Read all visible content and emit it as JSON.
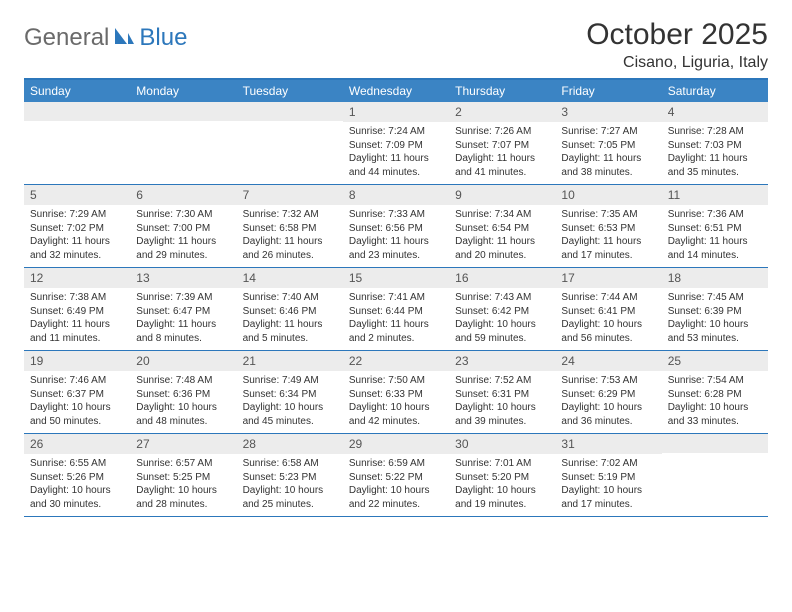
{
  "brand": {
    "part1": "General",
    "part2": "Blue"
  },
  "title": "October 2025",
  "location": "Cisano, Liguria, Italy",
  "weekdays": [
    "Sunday",
    "Monday",
    "Tuesday",
    "Wednesday",
    "Thursday",
    "Friday",
    "Saturday"
  ],
  "colors": {
    "header_bar": "#3b84c4",
    "rule": "#2c77bb",
    "daynum_bg": "#ececec",
    "text": "#333333"
  },
  "weeks": [
    [
      {
        "num": "",
        "sunrise": "",
        "sunset": "",
        "daylight": ""
      },
      {
        "num": "",
        "sunrise": "",
        "sunset": "",
        "daylight": ""
      },
      {
        "num": "",
        "sunrise": "",
        "sunset": "",
        "daylight": ""
      },
      {
        "num": "1",
        "sunrise": "Sunrise: 7:24 AM",
        "sunset": "Sunset: 7:09 PM",
        "daylight": "Daylight: 11 hours and 44 minutes."
      },
      {
        "num": "2",
        "sunrise": "Sunrise: 7:26 AM",
        "sunset": "Sunset: 7:07 PM",
        "daylight": "Daylight: 11 hours and 41 minutes."
      },
      {
        "num": "3",
        "sunrise": "Sunrise: 7:27 AM",
        "sunset": "Sunset: 7:05 PM",
        "daylight": "Daylight: 11 hours and 38 minutes."
      },
      {
        "num": "4",
        "sunrise": "Sunrise: 7:28 AM",
        "sunset": "Sunset: 7:03 PM",
        "daylight": "Daylight: 11 hours and 35 minutes."
      }
    ],
    [
      {
        "num": "5",
        "sunrise": "Sunrise: 7:29 AM",
        "sunset": "Sunset: 7:02 PM",
        "daylight": "Daylight: 11 hours and 32 minutes."
      },
      {
        "num": "6",
        "sunrise": "Sunrise: 7:30 AM",
        "sunset": "Sunset: 7:00 PM",
        "daylight": "Daylight: 11 hours and 29 minutes."
      },
      {
        "num": "7",
        "sunrise": "Sunrise: 7:32 AM",
        "sunset": "Sunset: 6:58 PM",
        "daylight": "Daylight: 11 hours and 26 minutes."
      },
      {
        "num": "8",
        "sunrise": "Sunrise: 7:33 AM",
        "sunset": "Sunset: 6:56 PM",
        "daylight": "Daylight: 11 hours and 23 minutes."
      },
      {
        "num": "9",
        "sunrise": "Sunrise: 7:34 AM",
        "sunset": "Sunset: 6:54 PM",
        "daylight": "Daylight: 11 hours and 20 minutes."
      },
      {
        "num": "10",
        "sunrise": "Sunrise: 7:35 AM",
        "sunset": "Sunset: 6:53 PM",
        "daylight": "Daylight: 11 hours and 17 minutes."
      },
      {
        "num": "11",
        "sunrise": "Sunrise: 7:36 AM",
        "sunset": "Sunset: 6:51 PM",
        "daylight": "Daylight: 11 hours and 14 minutes."
      }
    ],
    [
      {
        "num": "12",
        "sunrise": "Sunrise: 7:38 AM",
        "sunset": "Sunset: 6:49 PM",
        "daylight": "Daylight: 11 hours and 11 minutes."
      },
      {
        "num": "13",
        "sunrise": "Sunrise: 7:39 AM",
        "sunset": "Sunset: 6:47 PM",
        "daylight": "Daylight: 11 hours and 8 minutes."
      },
      {
        "num": "14",
        "sunrise": "Sunrise: 7:40 AM",
        "sunset": "Sunset: 6:46 PM",
        "daylight": "Daylight: 11 hours and 5 minutes."
      },
      {
        "num": "15",
        "sunrise": "Sunrise: 7:41 AM",
        "sunset": "Sunset: 6:44 PM",
        "daylight": "Daylight: 11 hours and 2 minutes."
      },
      {
        "num": "16",
        "sunrise": "Sunrise: 7:43 AM",
        "sunset": "Sunset: 6:42 PM",
        "daylight": "Daylight: 10 hours and 59 minutes."
      },
      {
        "num": "17",
        "sunrise": "Sunrise: 7:44 AM",
        "sunset": "Sunset: 6:41 PM",
        "daylight": "Daylight: 10 hours and 56 minutes."
      },
      {
        "num": "18",
        "sunrise": "Sunrise: 7:45 AM",
        "sunset": "Sunset: 6:39 PM",
        "daylight": "Daylight: 10 hours and 53 minutes."
      }
    ],
    [
      {
        "num": "19",
        "sunrise": "Sunrise: 7:46 AM",
        "sunset": "Sunset: 6:37 PM",
        "daylight": "Daylight: 10 hours and 50 minutes."
      },
      {
        "num": "20",
        "sunrise": "Sunrise: 7:48 AM",
        "sunset": "Sunset: 6:36 PM",
        "daylight": "Daylight: 10 hours and 48 minutes."
      },
      {
        "num": "21",
        "sunrise": "Sunrise: 7:49 AM",
        "sunset": "Sunset: 6:34 PM",
        "daylight": "Daylight: 10 hours and 45 minutes."
      },
      {
        "num": "22",
        "sunrise": "Sunrise: 7:50 AM",
        "sunset": "Sunset: 6:33 PM",
        "daylight": "Daylight: 10 hours and 42 minutes."
      },
      {
        "num": "23",
        "sunrise": "Sunrise: 7:52 AM",
        "sunset": "Sunset: 6:31 PM",
        "daylight": "Daylight: 10 hours and 39 minutes."
      },
      {
        "num": "24",
        "sunrise": "Sunrise: 7:53 AM",
        "sunset": "Sunset: 6:29 PM",
        "daylight": "Daylight: 10 hours and 36 minutes."
      },
      {
        "num": "25",
        "sunrise": "Sunrise: 7:54 AM",
        "sunset": "Sunset: 6:28 PM",
        "daylight": "Daylight: 10 hours and 33 minutes."
      }
    ],
    [
      {
        "num": "26",
        "sunrise": "Sunrise: 6:55 AM",
        "sunset": "Sunset: 5:26 PM",
        "daylight": "Daylight: 10 hours and 30 minutes."
      },
      {
        "num": "27",
        "sunrise": "Sunrise: 6:57 AM",
        "sunset": "Sunset: 5:25 PM",
        "daylight": "Daylight: 10 hours and 28 minutes."
      },
      {
        "num": "28",
        "sunrise": "Sunrise: 6:58 AM",
        "sunset": "Sunset: 5:23 PM",
        "daylight": "Daylight: 10 hours and 25 minutes."
      },
      {
        "num": "29",
        "sunrise": "Sunrise: 6:59 AM",
        "sunset": "Sunset: 5:22 PM",
        "daylight": "Daylight: 10 hours and 22 minutes."
      },
      {
        "num": "30",
        "sunrise": "Sunrise: 7:01 AM",
        "sunset": "Sunset: 5:20 PM",
        "daylight": "Daylight: 10 hours and 19 minutes."
      },
      {
        "num": "31",
        "sunrise": "Sunrise: 7:02 AM",
        "sunset": "Sunset: 5:19 PM",
        "daylight": "Daylight: 10 hours and 17 minutes."
      },
      {
        "num": "",
        "sunrise": "",
        "sunset": "",
        "daylight": ""
      }
    ]
  ]
}
